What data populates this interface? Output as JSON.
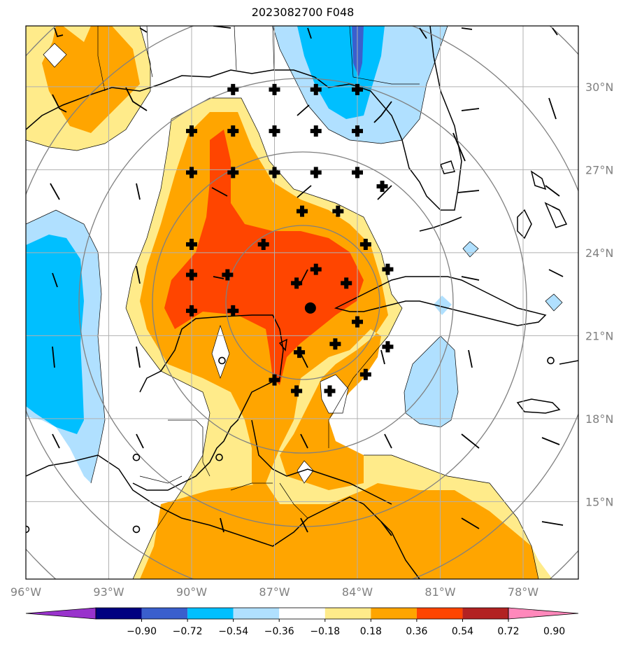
{
  "title": "2023082700 F048",
  "axes": {
    "lat_ticks": [
      "30°N",
      "27°N",
      "24°N",
      "21°N",
      "18°N",
      "15°N"
    ],
    "lat_values": [
      30,
      27,
      24,
      21,
      18,
      15
    ],
    "lon_ticks": [
      "96°W",
      "93°W",
      "90°W",
      "87°W",
      "84°W",
      "81°W",
      "78°W"
    ],
    "lon_values": [
      -96,
      -93,
      -90,
      -87,
      -84,
      -81,
      -78
    ],
    "lon_range": [
      -96,
      -76
    ],
    "lat_range": [
      12.2,
      32.2
    ],
    "grid": true
  },
  "colorbar": {
    "labels": [
      "−0.90",
      "−0.72",
      "−0.54",
      "−0.36",
      "−0.18",
      "0.18",
      "0.36",
      "0.54",
      "0.72",
      "0.90"
    ],
    "colors": [
      "#9933cc",
      "#000080",
      "#3a5fcd",
      "#00bfff",
      "#b0e0ff",
      "#ffffff",
      "#ffeb8a",
      "#ffa500",
      "#ff4500",
      "#b22222",
      "#ff88bb"
    ]
  },
  "center_marker": {
    "lon": -85.7,
    "lat": 22.0
  },
  "cross_markers": [
    [
      -88.5,
      29.9
    ],
    [
      -87.0,
      29.9
    ],
    [
      -85.5,
      29.9
    ],
    [
      -84.0,
      29.9
    ],
    [
      -90.0,
      28.4
    ],
    [
      -88.5,
      28.4
    ],
    [
      -87.0,
      28.4
    ],
    [
      -85.5,
      28.4
    ],
    [
      -84.0,
      28.4
    ],
    [
      -90.0,
      26.9
    ],
    [
      -88.5,
      26.9
    ],
    [
      -87.0,
      26.9
    ],
    [
      -85.5,
      26.9
    ],
    [
      -84.0,
      26.9
    ],
    [
      -83.1,
      26.4
    ],
    [
      -86.0,
      25.5
    ],
    [
      -84.7,
      25.5
    ],
    [
      -90.0,
      24.3
    ],
    [
      -87.4,
      24.3
    ],
    [
      -83.7,
      24.3
    ],
    [
      -90.0,
      23.2
    ],
    [
      -88.7,
      23.2
    ],
    [
      -85.5,
      23.4
    ],
    [
      -82.9,
      23.4
    ],
    [
      -86.2,
      22.9
    ],
    [
      -84.4,
      22.9
    ],
    [
      -90.0,
      21.9
    ],
    [
      -88.5,
      21.9
    ],
    [
      -84.0,
      21.5
    ],
    [
      -84.8,
      20.7
    ],
    [
      -82.9,
      20.6
    ],
    [
      -86.1,
      20.4
    ],
    [
      -87.0,
      19.4
    ],
    [
      -83.7,
      19.6
    ],
    [
      -86.2,
      19.0
    ],
    [
      -85.0,
      19.0
    ]
  ],
  "calm_markers": [
    [
      -88.9,
      20.1
    ],
    [
      -96.0,
      14.0
    ],
    [
      -92.0,
      14.0
    ],
    [
      -92.0,
      16.6
    ],
    [
      -89.0,
      16.6
    ],
    [
      -77.0,
      20.1
    ]
  ]
}
